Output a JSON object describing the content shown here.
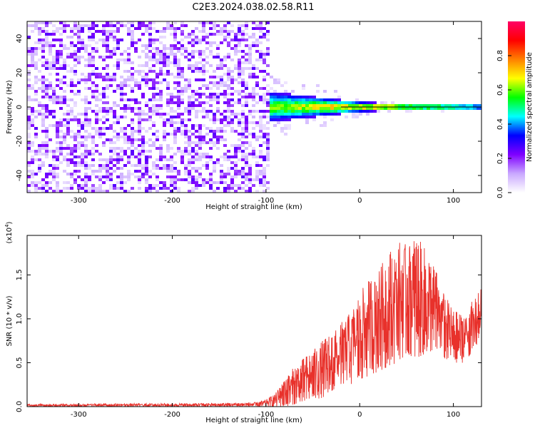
{
  "title": "C2E3.2024.038.02.58.R11",
  "colors": {
    "snr_line": "#e8312b",
    "spectrogram_low": "#8a2be2",
    "spectrogram_high": "#ff0040"
  },
  "chart_data": [
    {
      "type": "heatmap",
      "name": "spectrogram",
      "xlabel": "Height of straight line (km)",
      "ylabel": "Frequency (Hz)",
      "xlim": [
        -355,
        130
      ],
      "ylim": [
        -50,
        50
      ],
      "x_ticks": [
        -300,
        -200,
        -100,
        0,
        100
      ],
      "x_tick_labels": [
        "-300",
        "-200",
        "-100",
        "0",
        "100"
      ],
      "y_ticks": [
        -40,
        -20,
        0,
        20,
        40
      ],
      "y_tick_labels": [
        "-40",
        "-20",
        "0",
        "20",
        "40"
      ],
      "noise_region_x": [
        -355,
        -95
      ],
      "signal_center_hz": 0,
      "signal_band_halfwidth_hz": [
        [
          -100,
          9
        ],
        [
          -50,
          6
        ],
        [
          0,
          3
        ],
        [
          50,
          1.5
        ],
        [
          130,
          1
        ]
      ],
      "colorbar": {
        "label": "Normalized spectral amplitude",
        "range": [
          0,
          1
        ],
        "ticks": [
          0.0,
          0.2,
          0.4,
          0.6,
          0.8
        ],
        "tick_labels": [
          "0.0",
          "0.2",
          "0.4",
          "0.6",
          "0.8"
        ],
        "colors": [
          "#ffffff",
          "#c9a8ff",
          "#7f00ff",
          "#0000ff",
          "#00ffff",
          "#00ff00",
          "#ffff00",
          "#ff8000",
          "#ff0000",
          "#ff0066"
        ]
      }
    },
    {
      "type": "line",
      "name": "snr",
      "xlabel": "Height of straight line (km)",
      "ylabel": "SNR (10 * v/v)",
      "y_multiplier_label": "(x10",
      "y_multiplier_exp": "4",
      "y_multiplier_close": ")",
      "xlim": [
        -355,
        130
      ],
      "ylim": [
        0,
        1.95
      ],
      "x_ticks": [
        -300,
        -200,
        -100,
        0,
        100
      ],
      "x_tick_labels": [
        "-300",
        "-200",
        "-100",
        "0",
        "100"
      ],
      "y_ticks": [
        0.0,
        0.5,
        1.0,
        1.5
      ],
      "y_tick_labels": [
        "0.0",
        "0.5",
        "1.0",
        "1.5"
      ],
      "envelope": {
        "x": [
          -355,
          -150,
          -110,
          -100,
          -90,
          -80,
          -60,
          -40,
          -20,
          -10,
          0,
          10,
          20,
          30,
          40,
          50,
          60,
          70,
          80,
          90,
          100,
          110,
          120,
          130
        ],
        "max": [
          0.03,
          0.04,
          0.05,
          0.08,
          0.15,
          0.35,
          0.55,
          0.75,
          0.95,
          1.1,
          1.3,
          1.45,
          1.6,
          1.75,
          1.9,
          1.85,
          1.95,
          1.8,
          1.6,
          1.3,
          1.1,
          1.05,
          1.2,
          1.35
        ],
        "min": [
          0.0,
          0.0,
          0.0,
          0.0,
          0.0,
          0.0,
          0.05,
          0.1,
          0.2,
          0.25,
          0.3,
          0.35,
          0.4,
          0.45,
          0.5,
          0.6,
          0.55,
          0.6,
          0.65,
          0.55,
          0.5,
          0.5,
          0.6,
          0.8
        ]
      }
    }
  ]
}
